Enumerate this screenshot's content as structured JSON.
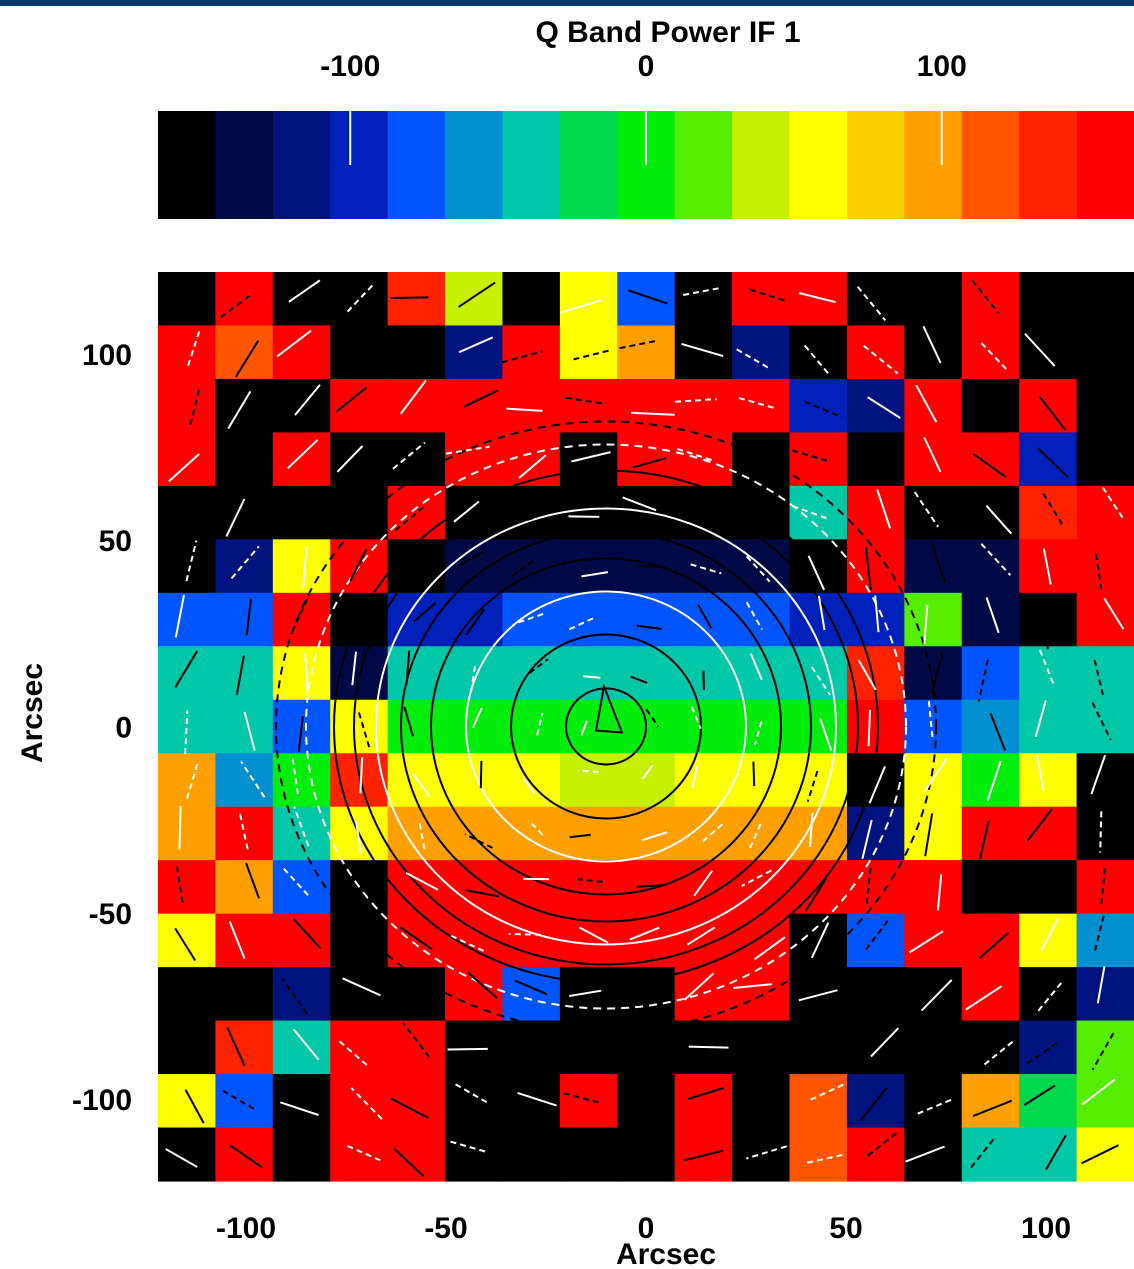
{
  "chart_data": {
    "type": "heatmap",
    "title": "Q Band Power IF 1",
    "xlabel": "Arcsec",
    "ylabel": "Arcsec",
    "xlim": [
      -122,
      122
    ],
    "ylim": [
      -122,
      122
    ],
    "x_ticks": [
      -100,
      -50,
      0,
      50,
      100
    ],
    "y_ticks": [
      100,
      50,
      0,
      -50,
      -100
    ],
    "grid": false,
    "colorbar": {
      "ticks": [
        -100,
        0,
        100
      ],
      "range": [
        -165,
        165
      ],
      "colors": [
        "#000000",
        "#000846",
        "#00137f",
        "#0021b9",
        "#0055ff",
        "#008fd0",
        "#00c7a7",
        "#00d84e",
        "#00ee0a",
        "#56ee00",
        "#c6f000",
        "#ffff00",
        "#ffd000",
        "#ffa000",
        "#ff5500",
        "#ff2200",
        "#ff0000"
      ]
    },
    "grid_cells": {
      "nx": 17,
      "ny": 17,
      "x_range": [
        -122,
        122
      ],
      "y_range": [
        -122,
        122
      ],
      "levels": [
        [
          0,
          16,
          0,
          0,
          15,
          10,
          0,
          11,
          4,
          0,
          16,
          16,
          0,
          0,
          16,
          0,
          0
        ],
        [
          16,
          14,
          16,
          0,
          0,
          2,
          16,
          11,
          13,
          0,
          2,
          0,
          16,
          0,
          16,
          0,
          0
        ],
        [
          16,
          0,
          0,
          16,
          16,
          16,
          16,
          16,
          16,
          16,
          16,
          3,
          2,
          16,
          0,
          16,
          0
        ],
        [
          16,
          0,
          16,
          0,
          0,
          16,
          16,
          0,
          16,
          16,
          0,
          16,
          0,
          16,
          16,
          3,
          0
        ],
        [
          0,
          0,
          0,
          0,
          16,
          0,
          0,
          0,
          0,
          0,
          0,
          6,
          16,
          0,
          0,
          15,
          16
        ],
        [
          0,
          2,
          11,
          16,
          0,
          1,
          1,
          1,
          1,
          1,
          1,
          0,
          16,
          1,
          1,
          16,
          16
        ],
        [
          4,
          4,
          16,
          0,
          3,
          3,
          4,
          4,
          4,
          4,
          4,
          3,
          3,
          9,
          1,
          0,
          16
        ],
        [
          6,
          6,
          11,
          1,
          6,
          6,
          6,
          6,
          6,
          6,
          6,
          6,
          15,
          1,
          4,
          6,
          6
        ],
        [
          6,
          6,
          4,
          11,
          8,
          8,
          8,
          8,
          8,
          8,
          8,
          8,
          16,
          4,
          5,
          6,
          6
        ],
        [
          13,
          5,
          8,
          15,
          11,
          11,
          11,
          10,
          10,
          11,
          11,
          11,
          0,
          11,
          8,
          11,
          0
        ],
        [
          13,
          16,
          6,
          11,
          13,
          13,
          13,
          13,
          13,
          13,
          13,
          13,
          2,
          11,
          16,
          16,
          0
        ],
        [
          16,
          13,
          4,
          0,
          16,
          16,
          16,
          16,
          16,
          16,
          16,
          16,
          16,
          16,
          0,
          0,
          16
        ],
        [
          11,
          16,
          16,
          0,
          16,
          16,
          16,
          16,
          16,
          16,
          16,
          0,
          4,
          16,
          16,
          11,
          5
        ],
        [
          0,
          0,
          2,
          0,
          0,
          16,
          4,
          0,
          0,
          16,
          16,
          0,
          0,
          0,
          16,
          0,
          2
        ],
        [
          0,
          15,
          6,
          16,
          16,
          0,
          0,
          0,
          0,
          0,
          0,
          0,
          0,
          0,
          0,
          2,
          9
        ],
        [
          11,
          4,
          0,
          16,
          16,
          0,
          0,
          16,
          0,
          16,
          0,
          14,
          2,
          0,
          13,
          7,
          9
        ],
        [
          0,
          16,
          0,
          16,
          16,
          0,
          0,
          0,
          0,
          16,
          0,
          14,
          16,
          0,
          6,
          6,
          11
        ]
      ]
    },
    "overlay": "contours and polarization vectors (black and white lines)"
  }
}
